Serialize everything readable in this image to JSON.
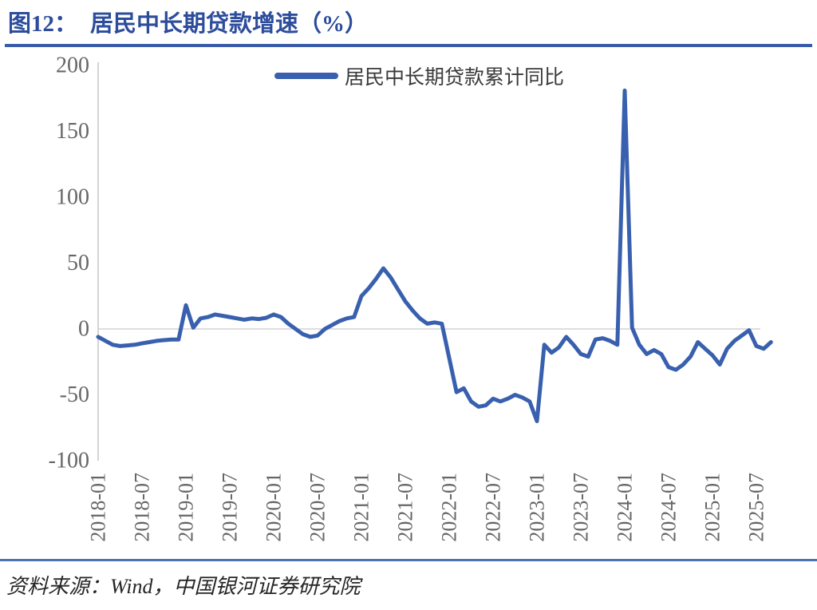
{
  "header": {
    "figure_label": "图12：",
    "title": "居民中长期贷款增速（%）"
  },
  "legend": {
    "label": "居民中长期贷款累计同比"
  },
  "footer": {
    "source": "资料来源：Wind，中国银河证券研究院"
  },
  "colors": {
    "title_blue": "#2C4C9C",
    "line_blue": "#3960AE",
    "rule_blue": "#3A5CA8",
    "rule_bottom_blue": "#4E73B4",
    "axis_gray": "#C9C9C9",
    "grid_gray": "#D4D4D4",
    "tick_label_gray": "#666666"
  },
  "chart_data": {
    "type": "line",
    "title": "居民中长期贷款增速（%）",
    "ylabel": "",
    "xlabel": "",
    "ylim": [
      -100,
      200
    ],
    "y_ticks": [
      200,
      150,
      100,
      50,
      0,
      -50,
      -100
    ],
    "x_tick_labels": [
      "2018-01",
      "2018-07",
      "2019-01",
      "2019-07",
      "2020-01",
      "2020-07",
      "2021-01",
      "2021-07",
      "2022-01",
      "2022-07",
      "2023-01",
      "2023-07",
      "2024-01",
      "2024-07",
      "2025-01",
      "2025-07"
    ],
    "grid": "horizontal zero line only",
    "legend_position": "top-center",
    "series": [
      {
        "name": "居民中长期贷款累计同比",
        "x": [
          "2018-01",
          "2018-02",
          "2018-03",
          "2018-04",
          "2018-05",
          "2018-06",
          "2018-07",
          "2018-08",
          "2018-09",
          "2018-10",
          "2018-11",
          "2018-12",
          "2019-01",
          "2019-02",
          "2019-03",
          "2019-04",
          "2019-05",
          "2019-06",
          "2019-07",
          "2019-08",
          "2019-09",
          "2019-10",
          "2019-11",
          "2019-12",
          "2020-01",
          "2020-02",
          "2020-03",
          "2020-04",
          "2020-05",
          "2020-06",
          "2020-07",
          "2020-08",
          "2020-09",
          "2020-10",
          "2020-11",
          "2020-12",
          "2021-01",
          "2021-02",
          "2021-03",
          "2021-04",
          "2021-05",
          "2021-06",
          "2021-07",
          "2021-08",
          "2021-09",
          "2021-10",
          "2021-11",
          "2021-12",
          "2022-01",
          "2022-02",
          "2022-03",
          "2022-04",
          "2022-05",
          "2022-06",
          "2022-07",
          "2022-08",
          "2022-09",
          "2022-10",
          "2022-11",
          "2022-12",
          "2023-01",
          "2023-02",
          "2023-03",
          "2023-04",
          "2023-05",
          "2023-06",
          "2023-07",
          "2023-08",
          "2023-09",
          "2023-10",
          "2023-11",
          "2023-12",
          "2024-01",
          "2024-02",
          "2024-03",
          "2024-04",
          "2024-05",
          "2024-06",
          "2024-07",
          "2024-08",
          "2024-09",
          "2024-10",
          "2024-11",
          "2024-12",
          "2025-01",
          "2025-02",
          "2025-03",
          "2025-04",
          "2025-05",
          "2025-06",
          "2025-07",
          "2025-08",
          "2025-09"
        ],
        "values": [
          -6,
          -9,
          -12,
          -13,
          -12.5,
          -12,
          -11,
          -10,
          -9,
          -8.5,
          -8,
          -8,
          18,
          1,
          8,
          9,
          11,
          10,
          9,
          8,
          7,
          8,
          7.5,
          8.5,
          11,
          9,
          4,
          0,
          -4,
          -6,
          -5,
          0,
          3,
          6,
          8,
          9,
          25,
          31,
          38,
          46,
          39,
          30,
          21,
          14,
          8,
          4,
          5,
          4,
          -22,
          -48,
          -45,
          -55,
          -59,
          -58,
          -53,
          -55,
          -53,
          -50,
          -52,
          -55,
          -70,
          -12,
          -18,
          -14,
          -6,
          -12,
          -19,
          -21,
          -8,
          -7,
          -9,
          -12,
          181,
          1,
          -12,
          -19,
          -16,
          -19,
          -29,
          -31,
          -27,
          -21,
          -10,
          -15,
          -20,
          -27,
          -15,
          -9,
          -5,
          -1,
          -13,
          -15,
          -10
        ]
      }
    ]
  }
}
